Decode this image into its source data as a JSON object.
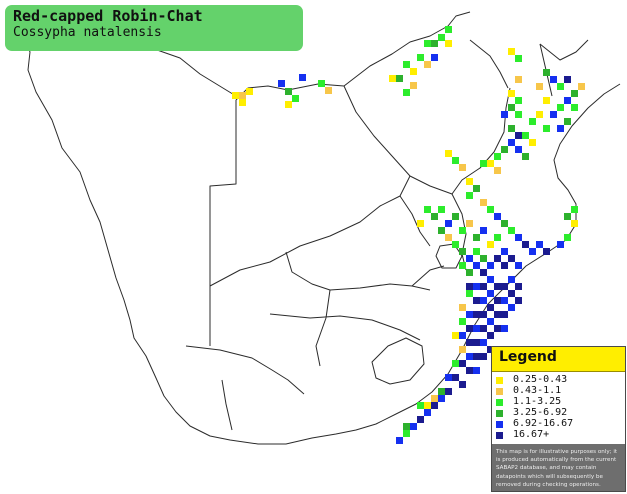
{
  "title": {
    "common_name": "Red-capped Robin-Chat",
    "scientific_name": "Cossypha natalensis",
    "box_color": "#64d26b"
  },
  "legend": {
    "heading": "Legend",
    "heading_color": "#ffee00",
    "classes": [
      {
        "label": "0.25-0.43",
        "color": "#ffee00"
      },
      {
        "label": "0.43-1.1",
        "color": "#f7c64a"
      },
      {
        "label": "1.1-3.25",
        "color": "#2cec2c"
      },
      {
        "label": "3.25-6.92",
        "color": "#2db12d"
      },
      {
        "label": "6.92-16.67",
        "color": "#1530f0"
      },
      {
        "label": "16.67+",
        "color": "#1b1b8f"
      }
    ],
    "note": "This map is for illustrative purposes only; it is produced automatically from the current SABAP2 database, and may contain datapoints which will subsequently be removed during checking operations."
  }
}
